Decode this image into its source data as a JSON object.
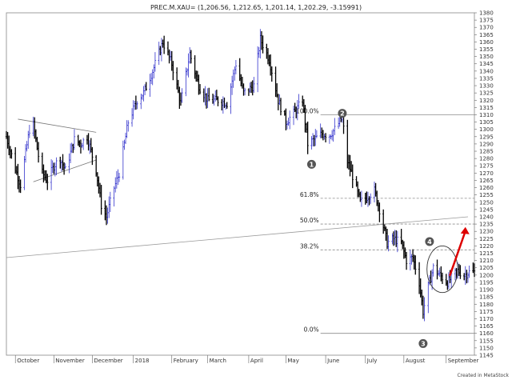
{
  "chart_data": {
    "type": "ohlc",
    "title": "PREC.M.XAU= (1,206.56, 1,212.65, 1,201.14, 1,202.29, -3.15991)",
    "credit": "Created in MetaStock",
    "y_axis": {
      "min": 1145,
      "max": 1380,
      "step": 5,
      "position": "right"
    },
    "x_axis": {
      "tick_labels": [
        "October",
        "November",
        "December",
        "2018",
        "February",
        "March",
        "April",
        "May",
        "June",
        "July",
        "August",
        "September"
      ],
      "tick_dates": [
        "2017-10-02",
        "2017-11-01",
        "2017-12-01",
        "2018-01-02",
        "2018-02-01",
        "2018-03-01",
        "2018-04-02",
        "2018-05-01",
        "2018-06-01",
        "2018-07-02",
        "2018-08-01",
        "2018-09-03"
      ],
      "range": [
        "2017-09-25",
        "2018-09-25"
      ]
    },
    "price_path": [
      [
        "2017-09-25",
        1295
      ],
      [
        "2017-10-02",
        1273
      ],
      [
        "2017-10-06",
        1262
      ],
      [
        "2017-10-13",
        1300
      ],
      [
        "2017-10-16",
        1303
      ],
      [
        "2017-10-20",
        1282
      ],
      [
        "2017-10-23",
        1270
      ],
      [
        "2017-10-27",
        1265
      ],
      [
        "2017-11-01",
        1275
      ],
      [
        "2017-11-06",
        1280
      ],
      [
        "2017-11-10",
        1272
      ],
      [
        "2017-11-17",
        1293
      ],
      [
        "2017-11-22",
        1290
      ],
      [
        "2017-11-27",
        1295
      ],
      [
        "2017-12-04",
        1272
      ],
      [
        "2017-12-08",
        1248
      ],
      [
        "2017-12-12",
        1240
      ],
      [
        "2017-12-18",
        1260
      ],
      [
        "2017-12-22",
        1270
      ],
      [
        "2017-12-29",
        1305
      ],
      [
        "2018-01-05",
        1320
      ],
      [
        "2018-01-10",
        1325
      ],
      [
        "2018-01-17",
        1340
      ],
      [
        "2018-01-25",
        1360
      ],
      [
        "2018-02-01",
        1345
      ],
      [
        "2018-02-08",
        1318
      ],
      [
        "2018-02-15",
        1352
      ],
      [
        "2018-02-22",
        1330
      ],
      [
        "2018-03-01",
        1320
      ],
      [
        "2018-03-09",
        1320
      ],
      [
        "2018-03-16",
        1318
      ],
      [
        "2018-03-23",
        1345
      ],
      [
        "2018-03-29",
        1325
      ],
      [
        "2018-04-06",
        1330
      ],
      [
        "2018-04-11",
        1362
      ],
      [
        "2018-04-18",
        1348
      ],
      [
        "2018-04-25",
        1320
      ],
      [
        "2018-05-01",
        1305
      ],
      [
        "2018-05-08",
        1312
      ],
      [
        "2018-05-14",
        1320
      ],
      [
        "2018-05-18",
        1290
      ],
      [
        "2018-05-23",
        1293
      ],
      [
        "2018-05-29",
        1297
      ],
      [
        "2018-06-04",
        1296
      ],
      [
        "2018-06-08",
        1300
      ],
      [
        "2018-06-14",
        1308
      ],
      [
        "2018-06-18",
        1278
      ],
      [
        "2018-06-22",
        1268
      ],
      [
        "2018-06-28",
        1250
      ],
      [
        "2018-07-05",
        1255
      ],
      [
        "2018-07-09",
        1258
      ],
      [
        "2018-07-13",
        1245
      ],
      [
        "2018-07-19",
        1222
      ],
      [
        "2018-07-24",
        1225
      ],
      [
        "2018-07-30",
        1222
      ],
      [
        "2018-08-03",
        1210
      ],
      [
        "2018-08-08",
        1212
      ],
      [
        "2018-08-13",
        1195
      ],
      [
        "2018-08-16",
        1175
      ],
      [
        "2018-08-20",
        1192
      ],
      [
        "2018-08-24",
        1205
      ],
      [
        "2018-08-29",
        1200
      ],
      [
        "2018-09-04",
        1195
      ],
      [
        "2018-09-07",
        1198
      ],
      [
        "2018-09-12",
        1203
      ],
      [
        "2018-09-17",
        1200
      ],
      [
        "2018-09-21",
        1202
      ]
    ],
    "fibonacci": {
      "high": 1310,
      "low": 1160,
      "levels": [
        {
          "label": "100.0%",
          "value": 1310
        },
        {
          "label": "61.8%",
          "value": 1252.7
        },
        {
          "label": "50.0%",
          "value": 1235
        },
        {
          "label": "38.2%",
          "value": 1217.3
        },
        {
          "label": "0.0%",
          "value": 1160
        }
      ]
    },
    "wave_labels": [
      {
        "label": "1",
        "date": "2018-05-21",
        "price": 1276
      },
      {
        "label": "2",
        "date": "2018-06-14",
        "price": 1311
      },
      {
        "label": "3",
        "date": "2018-08-16",
        "price": 1153
      },
      {
        "label": "4",
        "date": "2018-08-21",
        "price": 1223
      }
    ],
    "triangle": {
      "upper": [
        [
          "2017-10-04",
          1307
        ],
        [
          "2017-12-04",
          1298
        ]
      ],
      "lower": [
        [
          "2017-10-16",
          1264
        ],
        [
          "2017-12-04",
          1279
        ]
      ]
    },
    "trendline": [
      [
        "2017-09-25",
        1212
      ],
      [
        "2018-09-20",
        1240
      ]
    ],
    "ellipse": {
      "center_date": "2018-08-31",
      "center_price": 1204,
      "radius_days": 12,
      "radius_price": 16
    },
    "projection_arrow": [
      [
        "2018-09-06",
        1200
      ],
      [
        "2018-09-18",
        1233
      ]
    ],
    "colors": {
      "bar": "#3333cc",
      "bar_dark": "#000000",
      "arrow": "#dd0000",
      "grid_line": "#9a9a9a",
      "marker": "#555555"
    }
  }
}
